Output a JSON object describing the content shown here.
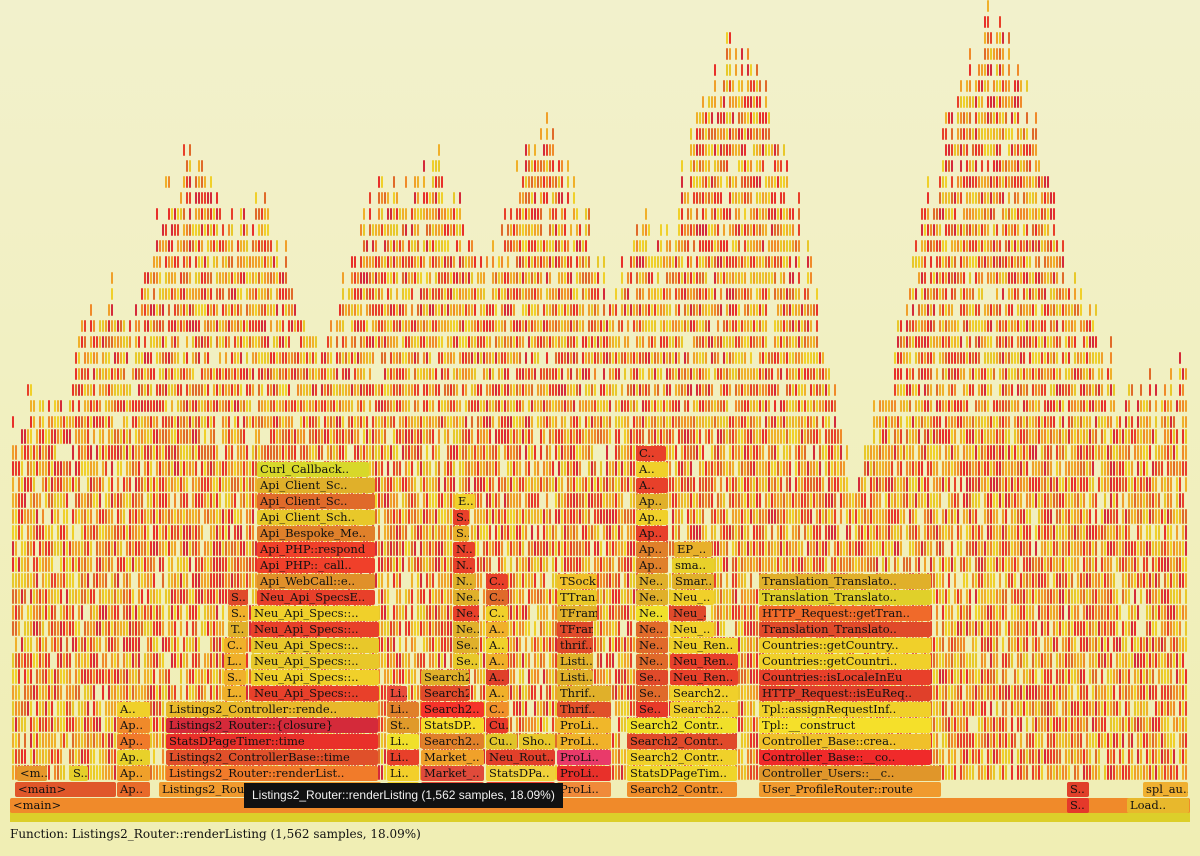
{
  "tooltip": "Listings2_Router::renderListing (1,562 samples, 18.09%)",
  "status": "Function: Listings2_Router::renderListing (1,562 samples, 18.09%)",
  "frames": [
    {
      "label": "<main>"
    },
    {
      "label": "<main>"
    },
    {
      "label": "Ap.."
    },
    {
      "label": "Listings2_Router::routeListing"
    },
    {
      "label": "Li.."
    },
    {
      "label": "Market_.."
    },
    {
      "label": "Neu_Rout.."
    },
    {
      "label": "ProLi.."
    },
    {
      "label": "Search2_Contr.."
    },
    {
      "label": "User_ProfileRouter::route"
    },
    {
      "label": "S.."
    },
    {
      "label": "spl_au.."
    },
    {
      "label": "S.."
    },
    {
      "label": "Load.."
    },
    {
      "label": "<m.."
    },
    {
      "label": "S.."
    },
    {
      "label": "Ap.."
    },
    {
      "label": "Listings2_Router::renderList.."
    },
    {
      "label": "Li.."
    },
    {
      "label": "Market_.."
    },
    {
      "label": "StatsDPa.."
    },
    {
      "label": "ProLi.."
    },
    {
      "label": "StatsDPageTim.."
    },
    {
      "label": "Controller_Users::__c.."
    },
    {
      "label": "Ap.."
    },
    {
      "label": "Listings2_ControllerBase::time"
    },
    {
      "label": "Li.."
    },
    {
      "label": "Market_.."
    },
    {
      "label": "Neu_Rout.."
    },
    {
      "label": "ProLi.."
    },
    {
      "label": "Search2_Contr.."
    },
    {
      "label": "Controller_Base::__co.."
    },
    {
      "label": "Ap.."
    },
    {
      "label": "StatsDPageTimer::time"
    },
    {
      "label": "Li.."
    },
    {
      "label": "Search2.."
    },
    {
      "label": "Cu.."
    },
    {
      "label": "Sho.."
    },
    {
      "label": "ProLi.."
    },
    {
      "label": "Search2_Contr.."
    },
    {
      "label": "Controller_Base::crea.."
    },
    {
      "label": "Ap.."
    },
    {
      "label": "Listings2_Router::{closure}"
    },
    {
      "label": "St.."
    },
    {
      "label": "StatsDP.."
    },
    {
      "label": "Cu.."
    },
    {
      "label": "ProLi.."
    },
    {
      "label": "Search2_Contr.."
    },
    {
      "label": "Tpl::__construct"
    },
    {
      "label": "A.."
    },
    {
      "label": "Listings2_Controller::rende.."
    },
    {
      "label": "Li.."
    },
    {
      "label": "Search2.."
    },
    {
      "label": "C.."
    },
    {
      "label": "Thrif.."
    },
    {
      "label": "Se.."
    },
    {
      "label": "Search2.."
    },
    {
      "label": "Tpl::assignRequestInf.."
    },
    {
      "label": "L.."
    },
    {
      "label": "Neu_Api_Specs::.."
    },
    {
      "label": "Li.."
    },
    {
      "label": "Search2.."
    },
    {
      "label": "A.."
    },
    {
      "label": "Thrif.."
    },
    {
      "label": "Se.."
    },
    {
      "label": "Search2.."
    },
    {
      "label": "HTTP_Request::isEuReq.."
    },
    {
      "label": "S.."
    },
    {
      "label": "Neu_Api_Specs::.."
    },
    {
      "label": "Search2.."
    },
    {
      "label": "A.."
    },
    {
      "label": "Listi.."
    },
    {
      "label": "Se.."
    },
    {
      "label": "Neu_Ren.."
    },
    {
      "label": "Countries::isLocaleInEu"
    },
    {
      "label": "L.."
    },
    {
      "label": "Neu_Api_Specs::.."
    },
    {
      "label": "Se.."
    },
    {
      "label": "A.."
    },
    {
      "label": "Listi.."
    },
    {
      "label": "Ne.."
    },
    {
      "label": "Neu_Ren.."
    },
    {
      "label": "Countries::getCountri.."
    },
    {
      "label": "C.."
    },
    {
      "label": "Neu_Api_Specs::.."
    },
    {
      "label": "Se.."
    },
    {
      "label": "A.."
    },
    {
      "label": "thrif.."
    },
    {
      "label": "Ne.."
    },
    {
      "label": "Neu_Ren.."
    },
    {
      "label": "Countries::getCountry.."
    },
    {
      "label": "T.."
    },
    {
      "label": "Neu_Api_Specs::.."
    },
    {
      "label": "Ne.."
    },
    {
      "label": "A.."
    },
    {
      "label": "TFram.."
    },
    {
      "label": "Ne.."
    },
    {
      "label": "Neu_.."
    },
    {
      "label": "Translation_Translato.."
    },
    {
      "label": "S.."
    },
    {
      "label": "Neu_Api_Specs::.."
    },
    {
      "label": "Ne.."
    },
    {
      "label": "C.."
    },
    {
      "label": "TFram.."
    },
    {
      "label": "Ne.."
    },
    {
      "label": "Neu_.."
    },
    {
      "label": "HTTP_Request::getTran.."
    },
    {
      "label": "S.."
    },
    {
      "label": "Neu_Api_SpecsE.."
    },
    {
      "label": "Ne.."
    },
    {
      "label": "C.."
    },
    {
      "label": "TTran.."
    },
    {
      "label": "Ne.."
    },
    {
      "label": "Neu_.."
    },
    {
      "label": "Translation_Translato.."
    },
    {
      "label": "Api_WebCall::e.."
    },
    {
      "label": "N.."
    },
    {
      "label": "C.."
    },
    {
      "label": "TSock.."
    },
    {
      "label": "Ne.."
    },
    {
      "label": "Smar.."
    },
    {
      "label": "Translation_Translato.."
    },
    {
      "label": "Api_PHP::_call.."
    },
    {
      "label": "N.."
    },
    {
      "label": "Ap.."
    },
    {
      "label": "sma.."
    },
    {
      "label": "Api_PHP::respond"
    },
    {
      "label": "N.."
    },
    {
      "label": "Ap.."
    },
    {
      "label": "EP_.."
    },
    {
      "label": "Api_Bespoke_Me.."
    },
    {
      "label": "S.."
    },
    {
      "label": "Ap.."
    },
    {
      "label": "Api_Client_Sch.."
    },
    {
      "label": "S.."
    },
    {
      "label": "Ap.."
    },
    {
      "label": "Api_Client_Sc.."
    },
    {
      "label": "E.."
    },
    {
      "label": "Ap.."
    },
    {
      "label": "Api_Client_Sc.."
    },
    {
      "label": "A.."
    },
    {
      "label": "Curl_Callback.."
    },
    {
      "label": "A.."
    },
    {
      "label": "C.."
    }
  ]
}
